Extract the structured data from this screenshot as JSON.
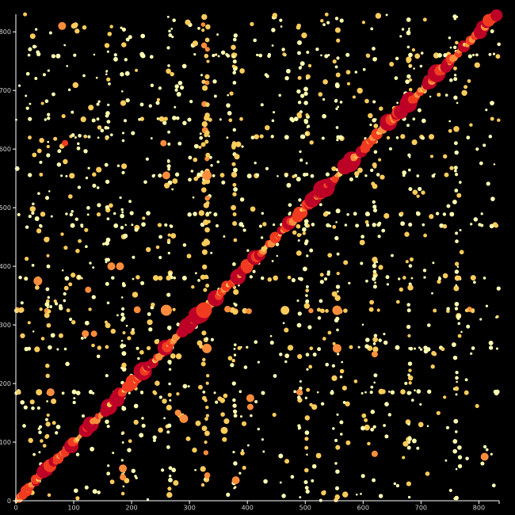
{
  "chart_data": {
    "type": "scatter",
    "title": "",
    "xlabel": "",
    "ylabel": "",
    "xlim": [
      0,
      835
    ],
    "ylim": [
      0,
      830
    ],
    "x_ticks": [
      0,
      100,
      200,
      300,
      400,
      500,
      600,
      700,
      800
    ],
    "y_ticks": [
      0,
      100,
      200,
      300,
      400,
      500,
      600,
      700,
      800
    ],
    "x_tick_labels": [
      "0",
      "100",
      "200",
      "300",
      "400",
      "500",
      "600",
      "700",
      "800"
    ],
    "y_tick_labels": [
      "0",
      "100",
      "200",
      "300",
      "400",
      "500",
      "600",
      "700",
      "800"
    ],
    "background": "#000000",
    "color_scale": [
      "#ffffb2",
      "#fecc5c",
      "#fd8d3c",
      "#f03b20",
      "#bd0026"
    ],
    "grid": false,
    "legend": "none",
    "diagonal": {
      "from": 0,
      "to": 830,
      "sizes": [
        6,
        7,
        8,
        9,
        10,
        12,
        14,
        16,
        18,
        22
      ],
      "levels": [
        2,
        2,
        3,
        3,
        3,
        4,
        4,
        4,
        5,
        5
      ]
    },
    "column_bands": [
      {
        "x": 330,
        "level": 2
      },
      {
        "x": 325,
        "level": 2
      },
      {
        "x": 185,
        "level": 1
      },
      {
        "x": 158,
        "level": 1
      },
      {
        "x": 265,
        "level": 1
      },
      {
        "x": 378,
        "level": 1
      },
      {
        "x": 490,
        "level": 1
      },
      {
        "x": 503,
        "level": 1
      },
      {
        "x": 555,
        "level": 1
      },
      {
        "x": 620,
        "level": 1
      },
      {
        "x": 680,
        "level": 1
      },
      {
        "x": 55,
        "level": 1
      },
      {
        "x": 760,
        "level": 1
      }
    ],
    "row_bands": [
      {
        "y": 325,
        "level": 2
      },
      {
        "y": 490,
        "level": 1
      },
      {
        "y": 470,
        "level": 1
      },
      {
        "y": 555,
        "level": 1
      },
      {
        "y": 185,
        "level": 1
      },
      {
        "y": 260,
        "level": 1
      },
      {
        "y": 650,
        "level": 1
      },
      {
        "y": 620,
        "level": 1
      },
      {
        "y": 380,
        "level": 1
      },
      {
        "y": 760,
        "level": 1
      }
    ],
    "highlight_points": [
      {
        "x": 80,
        "y": 810,
        "size": 10,
        "level": 3
      },
      {
        "x": 260,
        "y": 325,
        "size": 14,
        "level": 3
      },
      {
        "x": 325,
        "y": 325,
        "size": 20,
        "level": 4
      },
      {
        "x": 260,
        "y": 555,
        "size": 10,
        "level": 3
      },
      {
        "x": 330,
        "y": 555,
        "size": 12,
        "level": 3
      },
      {
        "x": 38,
        "y": 375,
        "size": 11,
        "level": 3
      },
      {
        "x": 165,
        "y": 400,
        "size": 10,
        "level": 3
      },
      {
        "x": 180,
        "y": 400,
        "size": 10,
        "level": 3
      },
      {
        "x": 85,
        "y": 610,
        "size": 8,
        "level": 4
      },
      {
        "x": 255,
        "y": 610,
        "size": 8,
        "level": 3
      },
      {
        "x": 330,
        "y": 260,
        "size": 12,
        "level": 3
      },
      {
        "x": 555,
        "y": 260,
        "size": 11,
        "level": 3
      },
      {
        "x": 465,
        "y": 325,
        "size": 11,
        "level": 2
      },
      {
        "x": 555,
        "y": 325,
        "size": 12,
        "level": 3
      },
      {
        "x": 620,
        "y": 250,
        "size": 8,
        "level": 3
      },
      {
        "x": 60,
        "y": 185,
        "size": 10,
        "level": 3
      },
      {
        "x": 40,
        "y": 185,
        "size": 8,
        "level": 2
      },
      {
        "x": 280,
        "y": 150,
        "size": 8,
        "level": 3
      },
      {
        "x": 290,
        "y": 140,
        "size": 11,
        "level": 3
      },
      {
        "x": 405,
        "y": 175,
        "size": 10,
        "level": 3
      },
      {
        "x": 405,
        "y": 160,
        "size": 8,
        "level": 3
      },
      {
        "x": 360,
        "y": 120,
        "size": 9,
        "level": 2
      },
      {
        "x": 380,
        "y": 35,
        "size": 10,
        "level": 3
      },
      {
        "x": 185,
        "y": 55,
        "size": 10,
        "level": 3
      },
      {
        "x": 185,
        "y": 40,
        "size": 8,
        "level": 3
      },
      {
        "x": 810,
        "y": 75,
        "size": 10,
        "level": 3
      },
      {
        "x": 620,
        "y": 80,
        "size": 8,
        "level": 3
      },
      {
        "x": 125,
        "y": 360,
        "size": 8,
        "level": 3
      },
      {
        "x": 135,
        "y": 285,
        "size": 8,
        "level": 3
      },
      {
        "x": 120,
        "y": 285,
        "size": 9,
        "level": 3
      },
      {
        "x": 100,
        "y": 810,
        "size": 7,
        "level": 2
      },
      {
        "x": 490,
        "y": 185,
        "size": 8,
        "level": 3
      }
    ],
    "scatter_seed": 7,
    "scatter_count": 1500
  }
}
